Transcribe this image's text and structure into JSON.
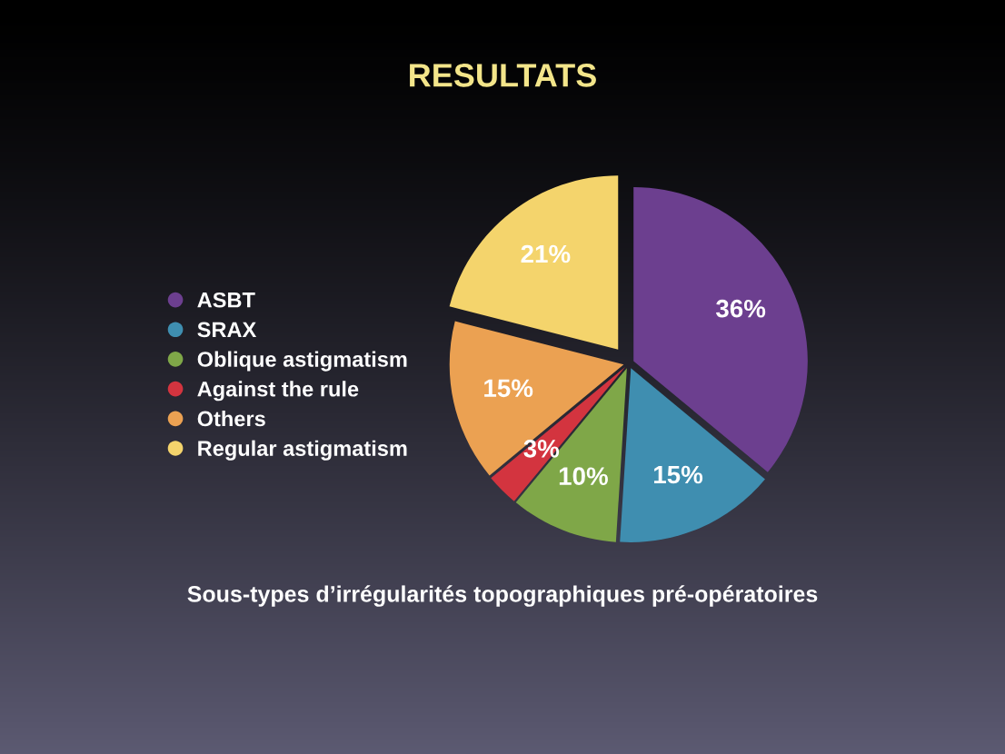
{
  "chart_data": {
    "type": "pie",
    "title": "RESULTATS",
    "categories": [
      "ASBT",
      "SRAX",
      "Oblique astigmatism",
      "Against the rule",
      "Others",
      "Regular astigmatism"
    ],
    "values": [
      36,
      15,
      10,
      3,
      15,
      21
    ],
    "colors": [
      "#6c3f8f",
      "#3f8eb0",
      "#7fa748",
      "#d3343f",
      "#eba152",
      "#f4d46c"
    ],
    "value_labels": [
      "36%",
      "15%",
      "10%",
      "3%",
      "15%",
      "21%"
    ],
    "legend": "left",
    "annotations": [
      "Sous-types d’irrégularités topographiques pré-opératoires"
    ]
  }
}
